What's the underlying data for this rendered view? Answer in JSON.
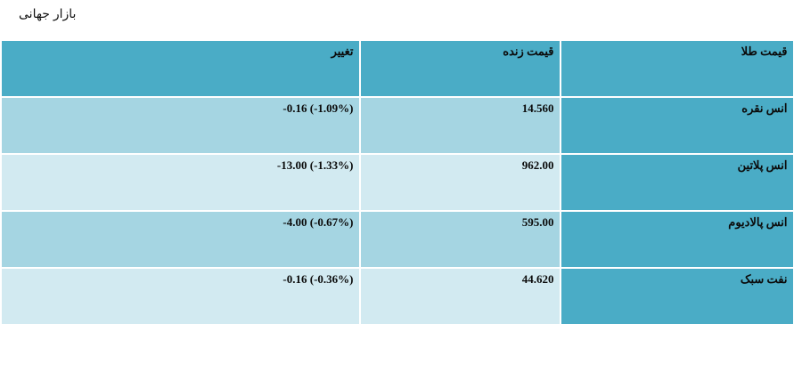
{
  "page": {
    "title": "بازار جهانی"
  },
  "table": {
    "headers": {
      "name": "قیمت طلا",
      "price": "قیمت زنده",
      "change": "تغییر"
    },
    "rows": [
      {
        "name": "انس نقره",
        "price": "14.560",
        "change": "-0.16 (-1.09%)"
      },
      {
        "name": "انس پلاتین",
        "price": "962.00",
        "change": "-13.00 (-1.33%)"
      },
      {
        "name": "انس پالادیوم",
        "price": "595.00",
        "change": "-4.00 (-0.67%)"
      },
      {
        "name": "نفت سبک",
        "price": "44.620",
        "change": "-0.16 (-0.36%)"
      }
    ]
  },
  "colors": {
    "header_bg": "#4aacc6",
    "row_odd_bg": "#a5d5e2",
    "row_even_bg": "#d2eaf1"
  }
}
